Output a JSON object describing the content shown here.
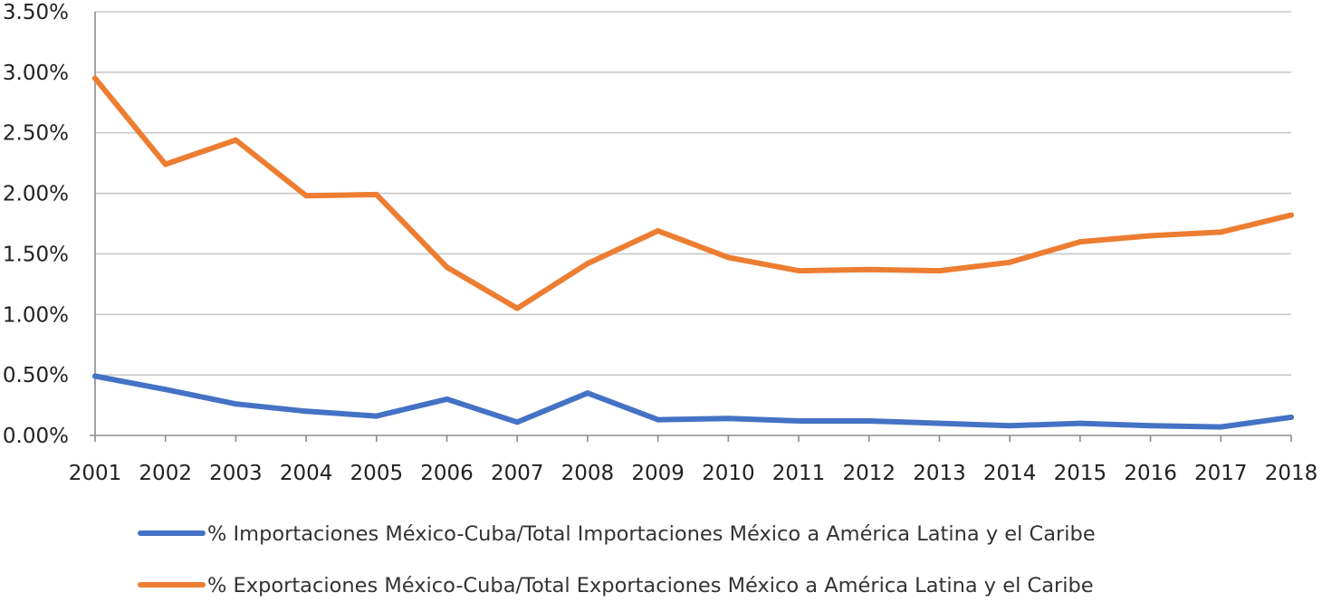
{
  "chart_data": {
    "type": "line",
    "title": "",
    "xlabel": "",
    "ylabel": "",
    "x": [
      "2001",
      "2002",
      "2003",
      "2004",
      "2005",
      "2006",
      "2007",
      "2008",
      "2009",
      "2010",
      "2011",
      "2012",
      "2013",
      "2014",
      "2015",
      "2016",
      "2017",
      "2018"
    ],
    "yticks": [
      "0.00%",
      "0.50%",
      "1.00%",
      "1.50%",
      "2.00%",
      "2.50%",
      "3.00%",
      "3.50%"
    ],
    "ylim": [
      0,
      3.5
    ],
    "grid": true,
    "legend_position": "bottom",
    "series": [
      {
        "name": "% Importaciones México-Cuba/Total Importaciones México a América Latina y el Caribe",
        "color": "#4472C4",
        "values": [
          0.49,
          0.38,
          0.26,
          0.2,
          0.16,
          0.3,
          0.11,
          0.35,
          0.13,
          0.14,
          0.12,
          0.12,
          0.1,
          0.08,
          0.1,
          0.08,
          0.07,
          0.15
        ]
      },
      {
        "name": "% Exportaciones México-Cuba/Total Exportaciones México a América Latina y el Caribe",
        "color": "#ED7D31",
        "values": [
          2.95,
          2.24,
          2.44,
          1.98,
          1.99,
          1.39,
          1.05,
          1.42,
          1.69,
          1.47,
          1.36,
          1.37,
          1.36,
          1.43,
          1.6,
          1.65,
          1.68,
          1.82
        ]
      }
    ]
  }
}
